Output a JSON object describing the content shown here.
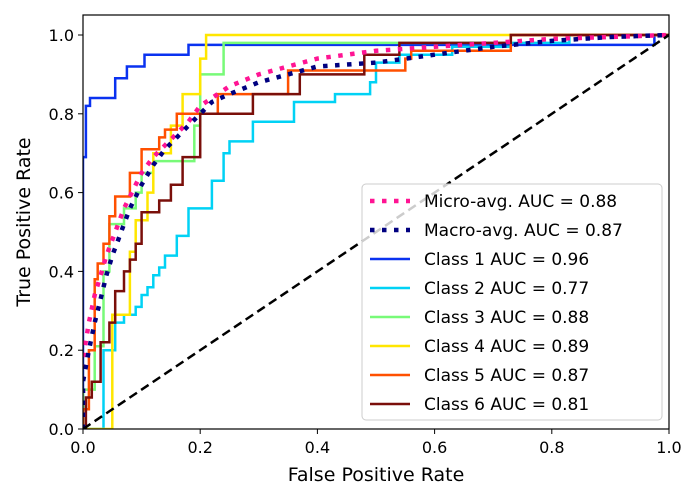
{
  "chart_data": {
    "type": "line",
    "title": "",
    "xlabel": "False Positive Rate",
    "ylabel": "True Positive Rate",
    "xlim": [
      0,
      1
    ],
    "ylim": [
      0,
      1.05
    ],
    "xticks": [
      "0.0",
      "0.2",
      "0.4",
      "0.6",
      "0.8",
      "1.0"
    ],
    "yticks": [
      "0.0",
      "0.2",
      "0.4",
      "0.6",
      "0.8",
      "1.0"
    ],
    "grid": false,
    "legend_position": "lower-right",
    "reference_line": {
      "name": "chance",
      "x": [
        0,
        1
      ],
      "y": [
        0,
        1
      ],
      "color": "#000000",
      "style": "dashed"
    },
    "series": [
      {
        "name": "Micro-avg. AUC = 0.88",
        "color": "#ff1493",
        "style": "dotted",
        "x": [
          0,
          0,
          0.01,
          0.02,
          0.03,
          0.04,
          0.05,
          0.06,
          0.07,
          0.08,
          0.09,
          0.1,
          0.12,
          0.14,
          0.16,
          0.18,
          0.2,
          0.22,
          0.25,
          0.3,
          0.35,
          0.4,
          0.5,
          0.6,
          0.7,
          0.8,
          0.9,
          1.0
        ],
        "y": [
          0,
          0.18,
          0.27,
          0.34,
          0.39,
          0.44,
          0.48,
          0.52,
          0.56,
          0.59,
          0.62,
          0.65,
          0.69,
          0.72,
          0.75,
          0.78,
          0.82,
          0.84,
          0.87,
          0.9,
          0.92,
          0.94,
          0.96,
          0.97,
          0.98,
          0.99,
          0.995,
          1.0
        ]
      },
      {
        "name": "Macro-avg. AUC = 0.87",
        "color": "#000080",
        "style": "dotted",
        "x": [
          0,
          0,
          0.01,
          0.02,
          0.03,
          0.04,
          0.05,
          0.06,
          0.07,
          0.08,
          0.1,
          0.12,
          0.14,
          0.16,
          0.18,
          0.2,
          0.22,
          0.25,
          0.3,
          0.35,
          0.4,
          0.5,
          0.6,
          0.7,
          0.8,
          0.9,
          1.0
        ],
        "y": [
          0,
          0.12,
          0.2,
          0.27,
          0.33,
          0.39,
          0.44,
          0.48,
          0.52,
          0.56,
          0.62,
          0.67,
          0.71,
          0.74,
          0.77,
          0.8,
          0.83,
          0.85,
          0.88,
          0.9,
          0.92,
          0.93,
          0.95,
          0.97,
          0.985,
          0.995,
          1.0
        ]
      },
      {
        "name": "Class 1 AUC = 0.96",
        "color": "#0a32f0",
        "style": "solid",
        "x": [
          0,
          0,
          0.005,
          0.005,
          0.012,
          0.012,
          0.055,
          0.055,
          0.075,
          0.075,
          0.105,
          0.105,
          0.18,
          0.18,
          0.975,
          0.975,
          1.0
        ],
        "y": [
          0,
          0.69,
          0.69,
          0.82,
          0.82,
          0.84,
          0.84,
          0.89,
          0.89,
          0.92,
          0.92,
          0.95,
          0.95,
          0.975,
          0.975,
          1.0,
          1.0
        ]
      },
      {
        "name": "Class 2 AUC = 0.77",
        "color": "#00d2f5",
        "style": "solid",
        "x": [
          0,
          0.035,
          0.035,
          0.055,
          0.055,
          0.07,
          0.07,
          0.09,
          0.09,
          0.1,
          0.1,
          0.11,
          0.11,
          0.12,
          0.12,
          0.13,
          0.13,
          0.14,
          0.14,
          0.16,
          0.16,
          0.18,
          0.18,
          0.22,
          0.22,
          0.24,
          0.24,
          0.25,
          0.25,
          0.29,
          0.29,
          0.36,
          0.36,
          0.43,
          0.43,
          0.49,
          0.49,
          0.5,
          0.5,
          0.54,
          0.54,
          0.63,
          0.63,
          0.73,
          0.73,
          0.83,
          0.83,
          1.0
        ],
        "y": [
          0,
          0,
          0.2,
          0.2,
          0.27,
          0.27,
          0.29,
          0.29,
          0.31,
          0.31,
          0.34,
          0.34,
          0.36,
          0.36,
          0.39,
          0.39,
          0.41,
          0.41,
          0.44,
          0.44,
          0.49,
          0.49,
          0.56,
          0.56,
          0.63,
          0.63,
          0.7,
          0.7,
          0.73,
          0.73,
          0.78,
          0.78,
          0.83,
          0.83,
          0.85,
          0.85,
          0.88,
          0.88,
          0.93,
          0.93,
          0.95,
          0.95,
          0.97,
          0.97,
          0.98,
          0.98,
          1.0,
          1.0
        ]
      },
      {
        "name": "Class 3 AUC = 0.88",
        "color": "#78fa78",
        "style": "solid",
        "x": [
          0,
          0,
          0.02,
          0.02,
          0.035,
          0.035,
          0.045,
          0.045,
          0.07,
          0.07,
          0.09,
          0.09,
          0.1,
          0.1,
          0.12,
          0.12,
          0.14,
          0.14,
          0.19,
          0.19,
          0.2,
          0.2,
          0.24,
          0.24,
          0.73,
          0.73,
          1.0
        ],
        "y": [
          0,
          0.1,
          0.1,
          0.21,
          0.21,
          0.4,
          0.4,
          0.52,
          0.52,
          0.56,
          0.56,
          0.6,
          0.6,
          0.65,
          0.65,
          0.68,
          0.68,
          0.68,
          0.68,
          0.77,
          0.77,
          0.9,
          0.9,
          0.98,
          0.98,
          1.0,
          1.0
        ]
      },
      {
        "name": "Class 4 AUC = 0.89",
        "color": "#ffe600",
        "style": "solid",
        "x": [
          0,
          0.05,
          0.05,
          0.08,
          0.08,
          0.09,
          0.09,
          0.11,
          0.11,
          0.12,
          0.12,
          0.15,
          0.15,
          0.17,
          0.17,
          0.2,
          0.2,
          0.21,
          0.21,
          1.0
        ],
        "y": [
          0,
          0,
          0.29,
          0.29,
          0.45,
          0.45,
          0.53,
          0.53,
          0.6,
          0.6,
          0.7,
          0.7,
          0.77,
          0.77,
          0.85,
          0.85,
          0.94,
          0.94,
          1.0,
          1.0
        ]
      },
      {
        "name": "Class 5 AUC = 0.87",
        "color": "#ff5000",
        "style": "solid",
        "x": [
          0,
          0,
          0.01,
          0.01,
          0.02,
          0.02,
          0.025,
          0.025,
          0.035,
          0.035,
          0.045,
          0.045,
          0.055,
          0.055,
          0.08,
          0.08,
          0.1,
          0.1,
          0.13,
          0.13,
          0.14,
          0.14,
          0.16,
          0.16,
          0.23,
          0.23,
          0.35,
          0.35,
          0.55,
          0.55,
          0.56,
          0.56,
          0.73,
          0.73,
          1.0
        ],
        "y": [
          0,
          0.05,
          0.05,
          0.2,
          0.2,
          0.38,
          0.38,
          0.42,
          0.42,
          0.47,
          0.47,
          0.54,
          0.54,
          0.59,
          0.59,
          0.65,
          0.65,
          0.71,
          0.71,
          0.74,
          0.74,
          0.76,
          0.76,
          0.8,
          0.8,
          0.85,
          0.85,
          0.91,
          0.91,
          0.94,
          0.94,
          0.96,
          0.96,
          1.0,
          1.0
        ]
      },
      {
        "name": "Class 6 AUC = 0.81",
        "color": "#7a0f0a",
        "style": "solid",
        "x": [
          0,
          0.005,
          0.005,
          0.015,
          0.015,
          0.03,
          0.03,
          0.045,
          0.045,
          0.055,
          0.055,
          0.07,
          0.07,
          0.08,
          0.08,
          0.09,
          0.09,
          0.1,
          0.1,
          0.13,
          0.13,
          0.15,
          0.15,
          0.17,
          0.17,
          0.2,
          0.2,
          0.29,
          0.29,
          0.37,
          0.37,
          0.48,
          0.48,
          0.54,
          0.54,
          0.73,
          0.73,
          1.0
        ],
        "y": [
          0,
          0,
          0.08,
          0.08,
          0.12,
          0.12,
          0.22,
          0.22,
          0.27,
          0.27,
          0.35,
          0.35,
          0.4,
          0.4,
          0.43,
          0.43,
          0.47,
          0.47,
          0.55,
          0.55,
          0.58,
          0.58,
          0.62,
          0.62,
          0.69,
          0.69,
          0.8,
          0.8,
          0.85,
          0.85,
          0.9,
          0.9,
          0.95,
          0.95,
          0.98,
          0.98,
          1.0,
          1.0
        ]
      }
    ]
  }
}
